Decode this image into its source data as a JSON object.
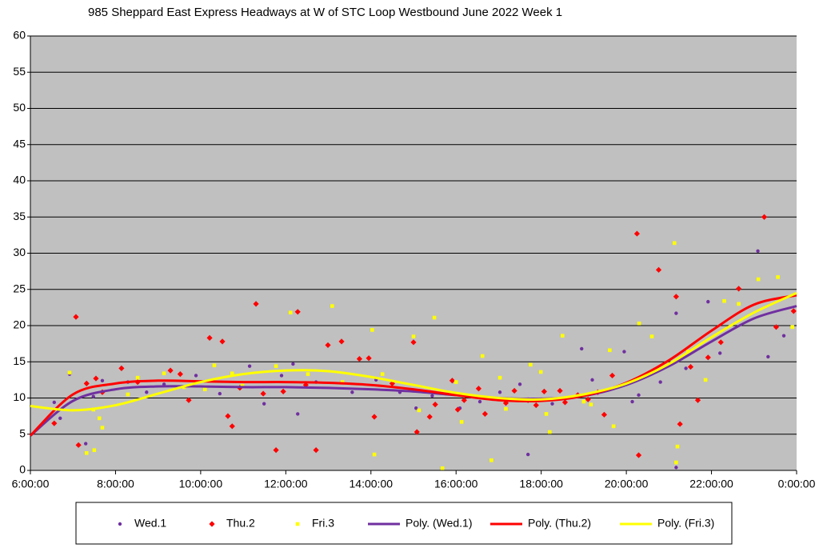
{
  "chart_data": {
    "type": "scatter",
    "title": "985 Sheppard East Express Headways at W of STC Loop Westbound June 2022  Week 1",
    "xlim": [
      6,
      24
    ],
    "xticks": [
      {
        "value": 6,
        "label": "6:00:00"
      },
      {
        "value": 8,
        "label": "8:00:00"
      },
      {
        "value": 10,
        "label": "10:00:00"
      },
      {
        "value": 12,
        "label": "12:00:00"
      },
      {
        "value": 14,
        "label": "14:00:00"
      },
      {
        "value": 16,
        "label": "16:00:00"
      },
      {
        "value": 18,
        "label": "18:00:00"
      },
      {
        "value": 20,
        "label": "20:00:00"
      },
      {
        "value": 22,
        "label": "22:00:00"
      },
      {
        "value": 24,
        "label": "0:00:00"
      }
    ],
    "ylim": [
      0,
      60
    ],
    "yticks": [
      0,
      5,
      10,
      15,
      20,
      25,
      30,
      35,
      40,
      45,
      50,
      55,
      60
    ],
    "grid": true,
    "legend": "bottom",
    "series": [
      {
        "name": "Wed.1",
        "type": "scatter",
        "marker": "circle",
        "color": "#7030a0",
        "x": [
          6.56,
          6.7,
          6.92,
          7.3,
          7.48,
          7.69,
          8.29,
          8.73,
          9.14,
          9.89,
          10.45,
          11.15,
          11.49,
          11.9,
          12.17,
          12.28,
          12.71,
          13.56,
          14.12,
          14.68,
          15.06,
          15.44,
          15.81,
          16.09,
          16.56,
          17.03,
          17.5,
          17.69,
          18.26,
          18.95,
          19.2,
          19.95,
          20.14,
          20.29,
          20.8,
          21.17,
          21.17,
          21.4,
          21.92,
          22.2,
          23.09,
          23.33,
          23.7
        ],
        "values": [
          9.4,
          7.2,
          13.3,
          3.7,
          10.2,
          12.4,
          12.2,
          10.8,
          11.9,
          13.1,
          10.6,
          14.4,
          9.2,
          13.1,
          14.7,
          7.8,
          12.2,
          10.8,
          12.5,
          10.8,
          8.6,
          10.3,
          10.6,
          8.6,
          9.5,
          10.8,
          11.9,
          2.2,
          9.2,
          16.8,
          12.5,
          16.4,
          9.5,
          10.4,
          12.2,
          21.7,
          0.4,
          14.1,
          23.3,
          16.2,
          30.3,
          15.7,
          18.6
        ]
      },
      {
        "name": "Thu.2",
        "type": "scatter",
        "marker": "diamond",
        "color": "#ff0000",
        "x": [
          6.56,
          7.07,
          7.13,
          7.32,
          7.54,
          7.69,
          8.14,
          8.52,
          9.29,
          9.52,
          9.72,
          10.21,
          10.51,
          10.64,
          10.74,
          10.92,
          11.3,
          11.47,
          11.77,
          11.94,
          12.28,
          12.47,
          12.71,
          12.99,
          13.31,
          13.73,
          13.95,
          14.08,
          14.5,
          15.0,
          15.08,
          15.38,
          15.51,
          15.91,
          16.04,
          16.19,
          16.53,
          16.68,
          17.17,
          17.37,
          17.69,
          17.88,
          18.07,
          18.44,
          18.56,
          18.86,
          19.1,
          19.33,
          19.48,
          19.67,
          20.25,
          20.29,
          20.76,
          21.17,
          21.26,
          21.51,
          21.68,
          21.92,
          22.22,
          22.64,
          23.24,
          23.52,
          23.93
        ],
        "values": [
          6.5,
          21.2,
          3.5,
          12.0,
          12.7,
          10.8,
          14.1,
          12.2,
          13.8,
          13.3,
          9.7,
          18.3,
          17.8,
          7.5,
          6.1,
          11.4,
          23.0,
          10.6,
          2.8,
          10.9,
          21.9,
          11.8,
          2.8,
          17.3,
          17.8,
          15.4,
          15.5,
          7.4,
          12.0,
          17.7,
          5.3,
          7.4,
          9.1,
          12.4,
          8.4,
          9.7,
          11.3,
          7.8,
          9.3,
          11.0,
          9.7,
          9.0,
          10.9,
          11.0,
          9.4,
          10.4,
          9.8,
          10.8,
          7.7,
          13.1,
          32.7,
          2.1,
          27.7,
          24.0,
          6.4,
          14.3,
          9.7,
          15.6,
          17.7,
          25.1,
          35.0,
          19.8,
          22.0
        ]
      },
      {
        "name": "Fri.3",
        "type": "scatter",
        "marker": "square",
        "color": "#ffff00",
        "x": [
          6.92,
          7.32,
          7.48,
          7.5,
          7.62,
          7.69,
          8.29,
          8.52,
          9.14,
          9.61,
          10.1,
          10.32,
          10.74,
          10.98,
          11.77,
          12.11,
          12.52,
          13.09,
          13.33,
          14.03,
          14.08,
          14.27,
          15.0,
          15.13,
          15.49,
          15.68,
          16.0,
          16.13,
          16.62,
          16.83,
          17.03,
          17.17,
          17.75,
          17.99,
          18.12,
          18.2,
          18.5,
          19.0,
          19.17,
          19.61,
          19.7,
          20.3,
          20.6,
          21.13,
          21.17,
          21.2,
          21.45,
          21.86,
          22.3,
          22.64,
          23.1,
          23.56,
          23.9
        ],
        "values": [
          13.5,
          2.4,
          8.4,
          2.8,
          7.2,
          5.9,
          10.5,
          12.8,
          13.4,
          11.5,
          11.2,
          14.5,
          13.4,
          11.7,
          14.4,
          21.8,
          13.3,
          22.7,
          12.2,
          19.4,
          2.2,
          13.3,
          18.5,
          8.3,
          21.1,
          0.3,
          12.2,
          6.7,
          15.8,
          1.4,
          12.8,
          8.5,
          14.6,
          13.6,
          7.8,
          5.3,
          18.6,
          9.5,
          9.1,
          16.6,
          6.1,
          20.3,
          18.5,
          31.4,
          1.1,
          3.3,
          16.4,
          12.5,
          23.4,
          23.0,
          26.4,
          26.7,
          19.8
        ]
      },
      {
        "name": "Poly. (Wed.1)",
        "type": "line",
        "color": "#7030a0",
        "x": [
          6,
          7,
          8,
          9,
          10,
          11,
          12,
          13,
          14,
          15,
          16,
          17,
          18,
          19,
          20,
          21,
          22,
          23,
          24
        ],
        "values": [
          4.8,
          9.6,
          11.2,
          11.6,
          11.6,
          11.5,
          11.5,
          11.4,
          11.2,
          10.9,
          10.4,
          10.0,
          9.9,
          10.3,
          11.8,
          14.4,
          17.8,
          21.0,
          22.7
        ]
      },
      {
        "name": "Poly. (Thu.2)",
        "type": "line",
        "color": "#ff0000",
        "x": [
          6,
          7,
          8,
          9,
          10,
          11,
          12,
          13,
          14,
          15,
          16,
          17,
          18,
          19,
          20,
          21,
          22,
          23,
          24
        ],
        "values": [
          4.8,
          10.5,
          12.0,
          12.4,
          12.3,
          12.2,
          12.2,
          12.1,
          11.8,
          11.2,
          10.4,
          9.7,
          9.6,
          10.3,
          12.1,
          15.2,
          19.3,
          22.9,
          24.2
        ]
      },
      {
        "name": "Poly. (Fri.3)",
        "type": "line",
        "color": "#ffff00",
        "x": [
          6,
          7,
          8,
          9,
          10,
          11,
          12,
          13,
          14,
          15,
          16,
          17,
          18,
          19,
          20,
          21,
          22,
          23,
          24
        ],
        "values": [
          8.9,
          8.3,
          9.0,
          10.6,
          12.2,
          13.3,
          13.8,
          13.7,
          12.9,
          11.8,
          10.7,
          10.0,
          9.8,
          10.5,
          12.0,
          14.7,
          18.4,
          21.8,
          24.5
        ]
      }
    ]
  }
}
